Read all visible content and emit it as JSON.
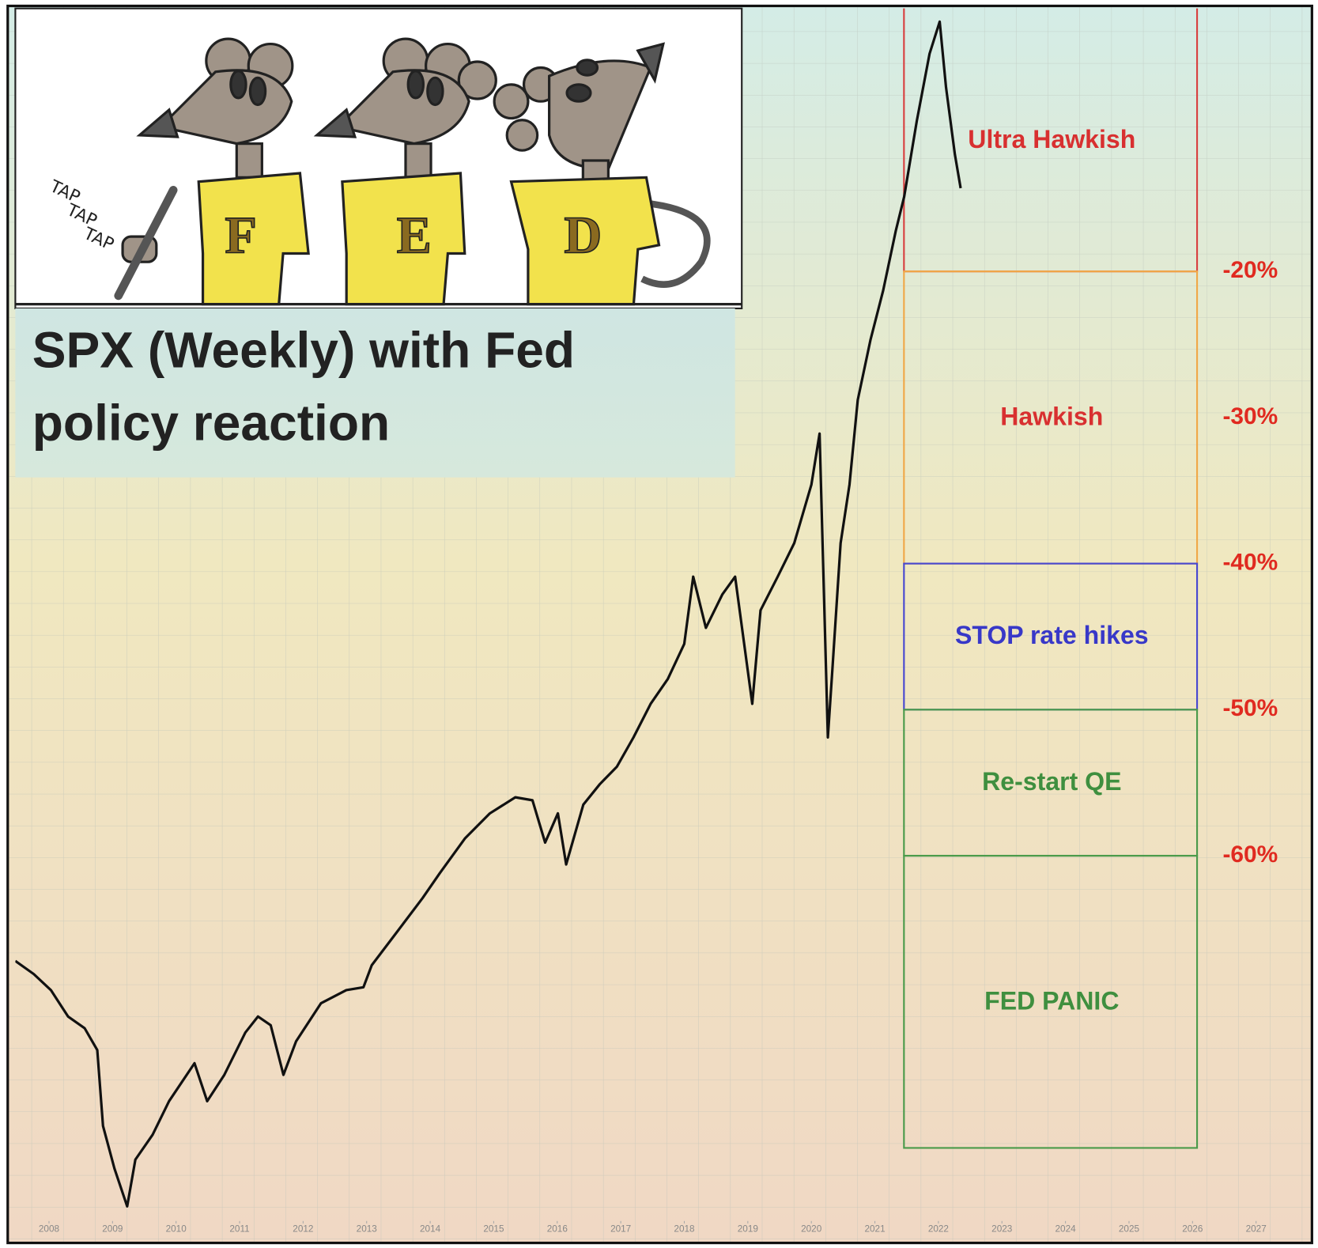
{
  "chart_data": {
    "type": "line",
    "title": "SPX (Weekly) with Fed policy reaction",
    "x": [
      2007.47,
      2007.76,
      2008.03,
      2008.3,
      2008.56,
      2008.76,
      2008.85,
      2009.03,
      2009.23,
      2009.36,
      2009.63,
      2009.89,
      2010.29,
      2010.49,
      2010.76,
      2011.09,
      2011.29,
      2011.49,
      2011.69,
      2011.89,
      2012.28,
      2012.68,
      2012.95,
      2013.08,
      2013.48,
      2013.88,
      2014.15,
      2014.55,
      2014.94,
      2015.34,
      2015.61,
      2015.81,
      2016.01,
      2016.14,
      2016.41,
      2016.67,
      2016.94,
      2017.2,
      2017.47,
      2017.74,
      2018.0,
      2018.14,
      2018.34,
      2018.6,
      2018.8,
      2019.07,
      2019.2,
      2019.47,
      2019.73,
      2020.0,
      2020.13,
      2020.26,
      2020.33,
      2020.46,
      2020.6,
      2020.73,
      2020.93,
      2021.13,
      2021.33,
      2021.46,
      2021.66,
      2021.86,
      2022.02,
      2022.12,
      2022.26,
      2022.35
    ],
    "values": [
      -67.2,
      -68.1,
      -69.2,
      -71.0,
      -71.8,
      -73.3,
      -78.5,
      -81.4,
      -84.0,
      -80.8,
      -79.1,
      -76.8,
      -74.2,
      -76.8,
      -75.0,
      -72.1,
      -71.0,
      -71.6,
      -75.0,
      -72.7,
      -70.1,
      -69.2,
      -69.0,
      -67.5,
      -65.2,
      -62.9,
      -61.2,
      -58.8,
      -57.1,
      -56.0,
      -56.2,
      -59.1,
      -57.1,
      -60.6,
      -56.5,
      -55.1,
      -53.9,
      -51.9,
      -49.6,
      -47.9,
      -45.5,
      -40.9,
      -44.4,
      -42.1,
      -40.9,
      -49.6,
      -43.2,
      -40.9,
      -38.6,
      -34.6,
      -31.1,
      -51.9,
      -47.3,
      -38.6,
      -34.6,
      -28.8,
      -24.7,
      -21.3,
      -17.2,
      -14.9,
      -9.7,
      -5.1,
      -2.9,
      -7.4,
      -12.0,
      -14.3
    ],
    "color": "#111111",
    "xlim": [
      2007.47,
      2027.84
    ],
    "xticks": [
      2008,
      2009,
      2010,
      2011,
      2012,
      2013,
      2014,
      2015,
      2016,
      2017,
      2018,
      2019,
      2020,
      2021,
      2022,
      2023,
      2024,
      2025,
      2026,
      2027
    ],
    "ylim": [
      -85,
      -2
    ],
    "yticks": [
      {
        "value": -20,
        "label": "-20%"
      },
      {
        "value": -30,
        "label": "-30%"
      },
      {
        "value": -40,
        "label": "-40%"
      },
      {
        "value": -50,
        "label": "-50%"
      },
      {
        "value": -60,
        "label": "-60%"
      }
    ],
    "zones": [
      {
        "label": "Ultra Hawkish",
        "from": 0,
        "to": -20,
        "color": "#d84040",
        "label_color": "#d83030"
      },
      {
        "label": "Hawkish",
        "from": -20,
        "to": -40,
        "color": "#f0a848",
        "label_color": "#d83030"
      },
      {
        "label": "STOP rate hikes",
        "from": -40,
        "to": -50,
        "color": "#4848d0",
        "label_color": "#3838c8"
      },
      {
        "label": "Re-start QE",
        "from": -50,
        "to": -60,
        "color": "#4a9a4a",
        "label_color": "#3f8f3f"
      },
      {
        "label": "FED PANIC",
        "from": -60,
        "to": -80,
        "color": "#4a9a4a",
        "label_color": "#3f8f3f"
      }
    ]
  },
  "cartoon": {
    "sound": [
      "TAP",
      "TAP",
      "TAP"
    ],
    "letters": [
      "F",
      "E",
      "D"
    ]
  }
}
